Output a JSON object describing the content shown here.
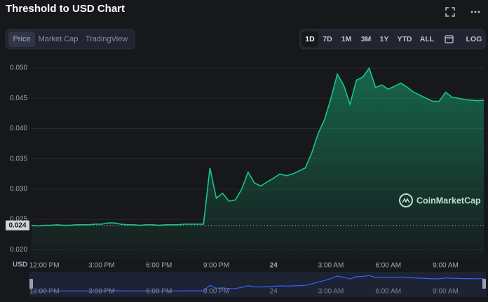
{
  "chart_data": {
    "type": "area",
    "title": "Threshold to USD Chart",
    "tabs": [
      "Price",
      "Market Cap",
      "TradingView"
    ],
    "ranges": [
      "1D",
      "7D",
      "1M",
      "3M",
      "1Y",
      "YTD",
      "ALL"
    ],
    "log_button": "LOG",
    "currency": "USD",
    "watermark": "CoinMarketCap",
    "color": "#16c784",
    "navigator_color": "#3861fb",
    "current_price": {
      "value": 0.024,
      "label": "0.024"
    },
    "categories": [
      null,
      null,
      "12:00 PM",
      null,
      null,
      null,
      null,
      null,
      null,
      null,
      null,
      "3:00 PM",
      null,
      null,
      null,
      null,
      null,
      null,
      null,
      null,
      "6:00 PM",
      null,
      null,
      null,
      null,
      null,
      null,
      null,
      null,
      "9:00 PM",
      null,
      null,
      null,
      null,
      null,
      null,
      null,
      null,
      "24",
      null,
      null,
      null,
      null,
      null,
      null,
      null,
      null,
      "3:00 AM",
      null,
      null,
      null,
      null,
      null,
      null,
      null,
      null,
      "6:00 AM",
      null,
      null,
      null,
      null,
      null,
      null,
      null,
      null,
      "9:00 AM",
      null,
      null,
      null,
      null,
      null,
      null
    ],
    "values": [
      0.024,
      0.0239,
      0.024,
      0.024,
      0.0241,
      0.024,
      0.024,
      0.0241,
      0.0241,
      0.0241,
      0.0242,
      0.0242,
      0.0244,
      0.0244,
      0.0242,
      0.0241,
      0.0241,
      0.024,
      0.0241,
      0.0241,
      0.024,
      0.0241,
      0.0241,
      0.0241,
      0.0242,
      0.0242,
      0.0242,
      0.0242,
      0.0335,
      0.0285,
      0.0293,
      0.028,
      0.0282,
      0.03,
      0.0328,
      0.031,
      0.0305,
      0.0312,
      0.0318,
      0.0325,
      0.0322,
      0.0325,
      0.033,
      0.0335,
      0.036,
      0.0392,
      0.0415,
      0.045,
      0.049,
      0.0472,
      0.044,
      0.048,
      0.0485,
      0.05,
      0.0468,
      0.0472,
      0.0465,
      0.047,
      0.0475,
      0.0468,
      0.046,
      0.0455,
      0.045,
      0.0445,
      0.0445,
      0.046,
      0.0452,
      0.045,
      0.0448,
      0.0447,
      0.0446,
      0.0447
    ],
    "ylim": [
      0.0184,
      0.0514
    ],
    "yticks": [
      {
        "value": 0.02,
        "label": "0.020"
      },
      {
        "value": 0.025,
        "label": "0.025"
      },
      {
        "value": 0.03,
        "label": "0.030"
      },
      {
        "value": 0.035,
        "label": "0.035"
      },
      {
        "value": 0.04,
        "label": "0.040"
      },
      {
        "value": 0.045,
        "label": "0.045"
      },
      {
        "value": 0.05,
        "label": "0.050"
      }
    ],
    "grid": true
  }
}
